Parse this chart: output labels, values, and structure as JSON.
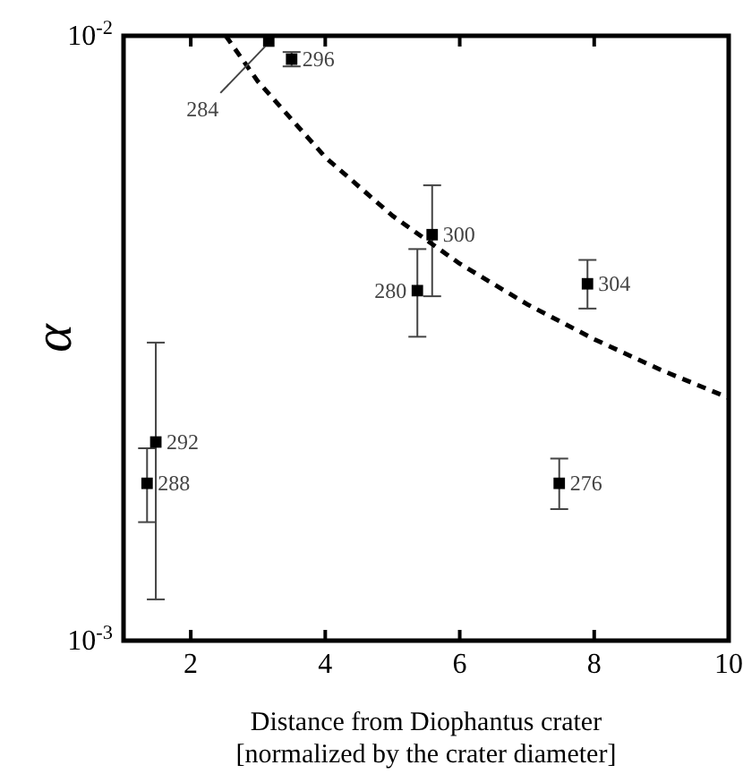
{
  "chart_data": {
    "type": "scatter",
    "xlabel": "Distance from Diophantus crater\n[normalized by the crater diameter]",
    "ylabel": "α",
    "log": "y",
    "xlim": [
      1,
      10
    ],
    "ylim": [
      0.001,
      0.01
    ],
    "xticks": [
      2,
      4,
      6,
      8,
      10
    ],
    "yticks": [
      {
        "value": 0.001,
        "label": "10$^{-3}$"
      },
      {
        "value": 0.01,
        "label": "10$^{-2}$"
      }
    ],
    "grid": false,
    "marker": "square",
    "series": [
      {
        "color": "#000000",
        "x": [
          3.16,
          3.5,
          5.59,
          5.37,
          7.9,
          1.48,
          1.35,
          7.48
        ],
        "values": [
          0.0098,
          0.00915,
          0.00469,
          0.00379,
          0.00389,
          0.00213,
          0.00182,
          0.00182
        ],
        "errors": [
          null,
          [
            0.0089,
            0.0094
          ],
          [
            0.00371,
            0.00566
          ],
          [
            0.00318,
            0.00444
          ],
          [
            0.00354,
            0.00426
          ],
          [
            0.00117,
            0.00311
          ],
          [
            0.00157,
            0.00208
          ],
          [
            0.00165,
            0.002
          ]
        ]
      },
      {
        "type": "line",
        "color": "#000000",
        "line_style": "dashed",
        "marker": "none",
        "x": [
          2.52,
          3,
          4,
          5,
          6,
          7,
          8,
          9,
          10
        ],
        "values": [
          0.01,
          0.0084,
          0.0063,
          0.00504,
          0.0042,
          0.0036,
          0.00315,
          0.0028,
          0.00252
        ]
      }
    ],
    "annotations": [
      {
        "text": "284",
        "x": 3.16,
        "y": 0.0098
      },
      {
        "text": "296",
        "x": 3.5,
        "y": 0.00915
      },
      {
        "text": "300",
        "x": 5.59,
        "y": 0.00469
      },
      {
        "text": "280",
        "x": 5.37,
        "y": 0.00379
      },
      {
        "text": "304",
        "x": 7.9,
        "y": 0.00389
      },
      {
        "text": "292",
        "x": 1.48,
        "y": 0.00213
      },
      {
        "text": "288",
        "x": 1.35,
        "y": 0.00182
      },
      {
        "text": "276",
        "x": 7.48,
        "y": 0.00182
      }
    ]
  }
}
